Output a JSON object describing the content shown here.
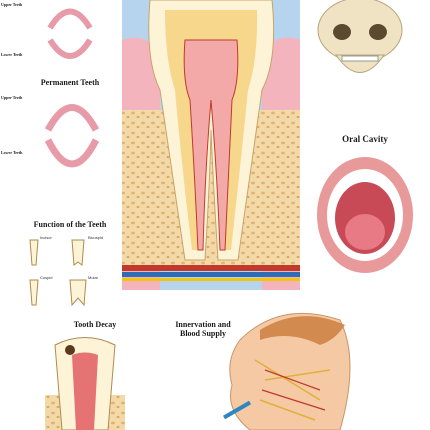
{
  "primary": {
    "upper_label": "Upper Teeth",
    "lower_label": "Lower Teeth"
  },
  "permanent": {
    "title": "Permanent Teeth",
    "upper_label": "Upper Teeth",
    "lower_label": "Lower Teeth"
  },
  "function": {
    "title": "Function of the Teeth",
    "types": [
      "Incisor",
      "Bicuspid",
      "Cuspid",
      "Molar"
    ]
  },
  "oral_cavity": {
    "title": "Oral Cavity"
  },
  "tooth_decay": {
    "title": "Tooth Decay"
  },
  "innervation": {
    "title": "Innervation and Blood Supply"
  }
}
